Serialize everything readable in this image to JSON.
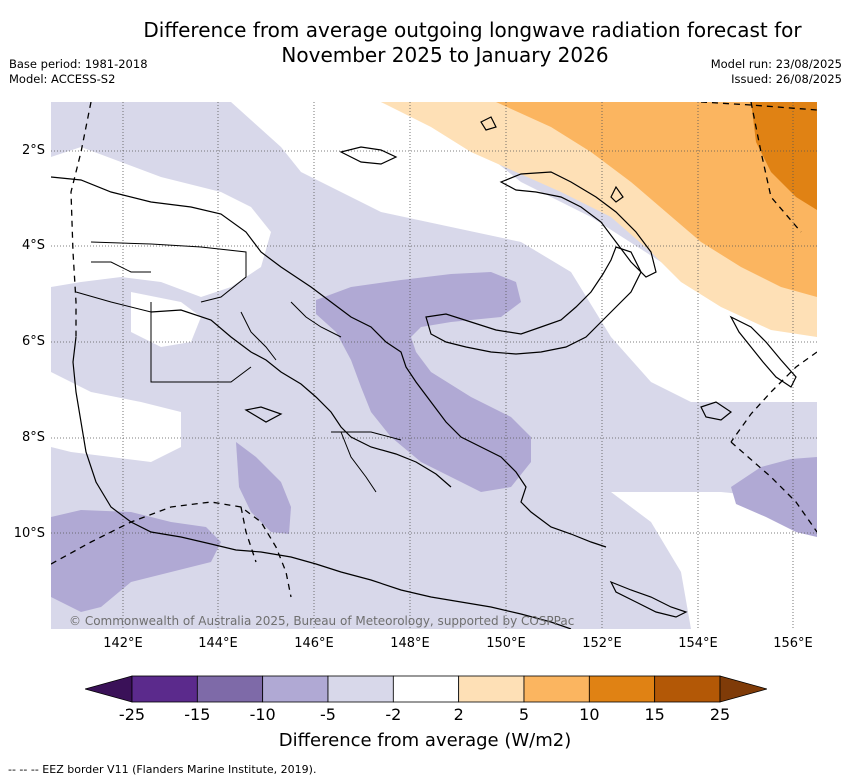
{
  "title_line1": "Difference from average outgoing longwave radiation forecast for",
  "title_line2": "November 2025 to January 2026",
  "base_period": "Base period: 1981-2018",
  "model": "Model: ACCESS-S2",
  "model_run": "Model run: 23/08/2025",
  "issued": "Issued: 26/08/2025",
  "copyright": "© Commonwealth of Australia 2025, Bureau of Meteorology, supported by COSPPac",
  "lat_labels": [
    "2°S",
    "4°S",
    "6°S",
    "8°S",
    "10°S"
  ],
  "lon_labels": [
    "142°E",
    "144°E",
    "146°E",
    "148°E",
    "150°E",
    "152°E",
    "154°E",
    "156°E"
  ],
  "colorbar": {
    "title": "Difference from average (W/m2)",
    "ticks": [
      "-25",
      "-15",
      "-10",
      "-5",
      "-2",
      "2",
      "5",
      "10",
      "15",
      "25"
    ],
    "colors": [
      "#3a1158",
      "#5b2a8c",
      "#7e6aa8",
      "#b0a9d4",
      "#d8d8ea",
      "#ffffff",
      "#fee0b6",
      "#fbb560",
      "#e08214",
      "#b35806",
      "#7f3b08"
    ]
  },
  "legend_note": "--  --  -- EEZ border V11 (Flanders Marine Institute, 2019)."
}
